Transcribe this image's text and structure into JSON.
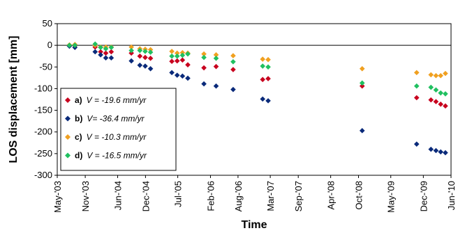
{
  "chart_data": {
    "type": "scatter",
    "xlabel": "Time",
    "ylabel": "LOS displacement [mm]",
    "ylim": [
      -300,
      50
    ],
    "yticks": [
      50,
      0,
      -50,
      -100,
      -150,
      -200,
      -250,
      -300
    ],
    "xlim": [
      "2003-05-01",
      "2010-06-01"
    ],
    "xticks": [
      {
        "date": "2003-05-01",
        "label": "May-'03"
      },
      {
        "date": "2003-11-01",
        "label": "Nov-'03"
      },
      {
        "date": "2004-06-01",
        "label": "Jun-'04"
      },
      {
        "date": "2004-12-01",
        "label": "Dec-'04"
      },
      {
        "date": "2005-07-01",
        "label": "Jul-'05"
      },
      {
        "date": "2006-02-01",
        "label": "Feb-'06"
      },
      {
        "date": "2006-08-01",
        "label": "Aug-'06"
      },
      {
        "date": "2007-03-01",
        "label": "Mar-'07"
      },
      {
        "date": "2007-09-01",
        "label": "Sep-'07"
      },
      {
        "date": "2008-04-01",
        "label": "Apr-'08"
      },
      {
        "date": "2008-10-01",
        "label": "Oct-'08"
      },
      {
        "date": "2009-05-01",
        "label": "May-'09"
      },
      {
        "date": "2009-12-01",
        "label": "Dec-'09"
      },
      {
        "date": "2010-06-01",
        "label": "Jun-'10"
      }
    ],
    "grid": false,
    "legend_position": "bottom-left",
    "series": [
      {
        "name": "a)",
        "velocity_text": "V = -19.6 mm/yr",
        "color": "#c8001e",
        "x": [
          "2003-07-20",
          "2003-08-25",
          "2004-01-05",
          "2004-02-10",
          "2004-03-15",
          "2004-04-20",
          "2004-08-30",
          "2004-10-25",
          "2004-11-29",
          "2005-01-03",
          "2005-05-23",
          "2005-06-27",
          "2005-08-01",
          "2005-09-05",
          "2005-12-20",
          "2006-03-10",
          "2006-06-30",
          "2007-01-10",
          "2007-02-15",
          "2008-10-25",
          "2009-10-18",
          "2010-01-20",
          "2010-02-22",
          "2010-03-25",
          "2010-04-25"
        ],
        "y": [
          -1,
          -1,
          -4,
          -15,
          -18,
          -15,
          -18,
          -25,
          -28,
          -30,
          -37,
          -36,
          -34,
          -45,
          -52,
          -49,
          -56,
          -79,
          -77,
          -94,
          -121,
          -126,
          -130,
          -136,
          -140
        ]
      },
      {
        "name": "b)",
        "velocity_text": "V= -36.4 mm/yr",
        "color": "#0a2a7a",
        "x": [
          "2003-07-20",
          "2003-08-25",
          "2004-01-05",
          "2004-02-10",
          "2004-03-15",
          "2004-04-20",
          "2004-08-30",
          "2004-10-25",
          "2004-11-29",
          "2005-01-03",
          "2005-05-23",
          "2005-06-27",
          "2005-08-01",
          "2005-09-05",
          "2005-12-20",
          "2006-03-10",
          "2006-06-30",
          "2007-01-10",
          "2007-02-15",
          "2008-10-25",
          "2009-10-18",
          "2010-01-20",
          "2010-02-22",
          "2010-03-25",
          "2010-04-25"
        ],
        "y": [
          -2,
          -5,
          -15,
          -22,
          -29,
          -29,
          -36,
          -46,
          -48,
          -54,
          -63,
          -69,
          -71,
          -76,
          -89,
          -94,
          -102,
          -124,
          -128,
          -197,
          -228,
          -240,
          -243,
          -246,
          -248
        ]
      },
      {
        "name": "c)",
        "velocity_text": "V = -10.3 mm/yr",
        "color": "#f0a020",
        "x": [
          "2003-07-20",
          "2003-08-25",
          "2004-01-05",
          "2004-02-10",
          "2004-03-15",
          "2004-04-20",
          "2004-08-30",
          "2004-10-25",
          "2004-11-29",
          "2005-01-03",
          "2005-05-23",
          "2005-06-27",
          "2005-08-01",
          "2005-09-05",
          "2005-12-20",
          "2006-03-10",
          "2006-06-30",
          "2007-01-10",
          "2007-02-15",
          "2008-10-25",
          "2009-10-18",
          "2010-01-20",
          "2010-02-22",
          "2010-03-25",
          "2010-04-25"
        ],
        "y": [
          1,
          2,
          0,
          -4,
          -4,
          -4,
          -4,
          -8,
          -9,
          -10,
          -14,
          -18,
          -17,
          -18,
          -20,
          -22,
          -24,
          -32,
          -33,
          -54,
          -63,
          -68,
          -70,
          -70,
          -65
        ]
      },
      {
        "name": "d)",
        "velocity_text": "V = -16.5 mm/yr",
        "color": "#20c060",
        "x": [
          "2003-07-20",
          "2003-08-25",
          "2004-01-05",
          "2004-02-10",
          "2004-03-15",
          "2004-04-20",
          "2004-08-30",
          "2004-10-25",
          "2004-11-29",
          "2005-01-03",
          "2005-05-23",
          "2005-06-27",
          "2005-08-01",
          "2005-09-05",
          "2005-12-20",
          "2006-03-10",
          "2006-06-30",
          "2007-01-10",
          "2007-02-15",
          "2008-10-25",
          "2009-10-18",
          "2010-01-20",
          "2010-02-22",
          "2010-03-25",
          "2010-04-25"
        ],
        "y": [
          0,
          0,
          3,
          -5,
          -8,
          -5,
          -12,
          -12,
          -14,
          -16,
          -25,
          -25,
          -23,
          -20,
          -28,
          -30,
          -38,
          -48,
          -50,
          -87,
          -94,
          -97,
          -103,
          -110,
          -112
        ]
      }
    ]
  }
}
